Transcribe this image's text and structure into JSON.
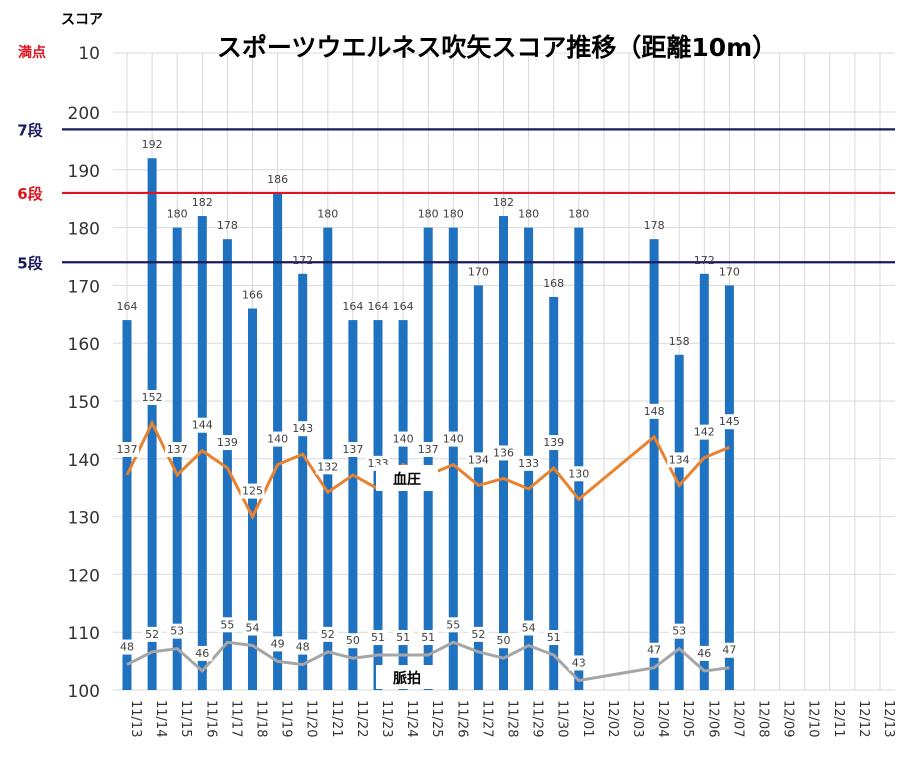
{
  "chart_data": {
    "type": "bar",
    "title": "スポーツウエルネス吹矢スコア推移（距離10m）",
    "ylabel": "スコア",
    "ylim": [
      100,
      210
    ],
    "y_ticks": [
      100,
      110,
      120,
      130,
      140,
      150,
      160,
      170,
      180,
      190,
      200
    ],
    "top_label": "10",
    "max_label": "満点",
    "categories": [
      "11/13",
      "11/14",
      "11/15",
      "11/16",
      "11/17",
      "11/18",
      "11/19",
      "11/20",
      "11/21",
      "11/22",
      "11/23",
      "11/24",
      "11/25",
      "11/26",
      "11/27",
      "11/28",
      "11/29",
      "11/30",
      "12/01",
      "12/02",
      "12/03",
      "12/04",
      "12/05",
      "12/06",
      "12/07",
      "12/08",
      "12/09",
      "12/10",
      "12/11",
      "12/12",
      "12/13"
    ],
    "score_values": [
      164,
      192,
      180,
      182,
      178,
      166,
      186,
      172,
      180,
      164,
      164,
      164,
      180,
      180,
      170,
      182,
      180,
      168,
      180,
      null,
      null,
      178,
      158,
      172,
      170,
      null,
      null,
      null,
      null,
      null,
      null
    ],
    "blood_pressure_label": "血圧",
    "blood_pressure": [
      137,
      152,
      137,
      144,
      139,
      125,
      140,
      143,
      132,
      137,
      133,
      140,
      137,
      140,
      134,
      136,
      133,
      139,
      130,
      null,
      null,
      148,
      134,
      142,
      145,
      null,
      null,
      null,
      null,
      null,
      null
    ],
    "pulse_label": "脈拍",
    "pulse": [
      48,
      52,
      53,
      46,
      55,
      54,
      49,
      48,
      52,
      50,
      51,
      51,
      51,
      55,
      52,
      50,
      54,
      51,
      43,
      null,
      null,
      47,
      53,
      46,
      47,
      null,
      null,
      null,
      null,
      null,
      null
    ],
    "reference_lines": [
      {
        "label": "7段",
        "value": 197,
        "color": "#1a1a5e"
      },
      {
        "label": "6段",
        "value": 186,
        "color": "#e0141e"
      },
      {
        "label": "5段",
        "value": 174,
        "color": "#1a1a5e"
      }
    ],
    "colors": {
      "bar": "#1f72c0",
      "bp": "#e8822e",
      "pulse": "#a6a6a6",
      "grid": "#d9d9d9"
    },
    "grid": true
  }
}
